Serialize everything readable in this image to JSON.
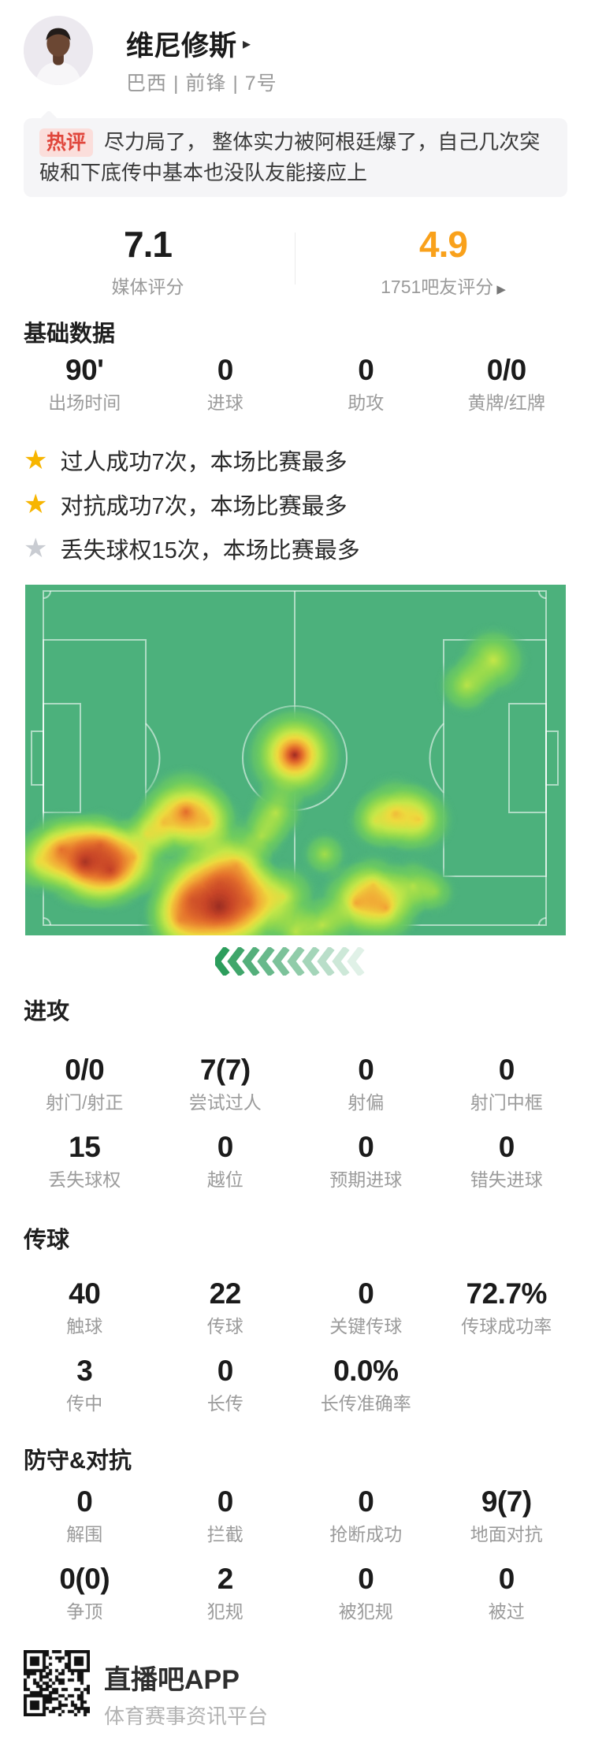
{
  "player": {
    "name": "维尼修斯",
    "caret": "▸",
    "meta": "巴西 | 前锋 | 7号"
  },
  "hot_comment": {
    "badge": "热评",
    "text": "尽力局了， 整体实力被阿根廷爆了，自己几次突破和下底传中基本也没队友能接应上"
  },
  "ratings": {
    "media": {
      "value": "7.1",
      "label": "媒体评分"
    },
    "fans": {
      "value": "4.9",
      "label": "1751吧友评分",
      "caret": "▶",
      "accent": "#f9a11b"
    }
  },
  "basic": {
    "title": "基础数据",
    "stats": [
      {
        "value": "90'",
        "label": "出场时间"
      },
      {
        "value": "0",
        "label": "进球"
      },
      {
        "value": "0",
        "label": "助攻"
      },
      {
        "value": "0/0",
        "label": "黄牌/红牌"
      }
    ]
  },
  "highlights": {
    "star_glyph": "★",
    "items": [
      {
        "star_color": "#f7b500",
        "text": "过人成功7次，本场比赛最多"
      },
      {
        "star_color": "#f7b500",
        "text": "对抗成功7次，本场比赛最多"
      },
      {
        "star_color": "#c9ccd2",
        "text": "丢失球权15次，本场比赛最多"
      }
    ]
  },
  "attack": {
    "title": "进攻",
    "stats": [
      {
        "value": "0/0",
        "label": "射门/射正"
      },
      {
        "value": "7(7)",
        "label": "尝试过人"
      },
      {
        "value": "0",
        "label": "射偏"
      },
      {
        "value": "0",
        "label": "射门中框"
      },
      {
        "value": "15",
        "label": "丢失球权"
      },
      {
        "value": "0",
        "label": "越位"
      },
      {
        "value": "0",
        "label": "预期进球"
      },
      {
        "value": "0",
        "label": "错失进球"
      }
    ]
  },
  "passing": {
    "title": "传球",
    "stats": [
      {
        "value": "40",
        "label": "触球"
      },
      {
        "value": "22",
        "label": "传球"
      },
      {
        "value": "0",
        "label": "关键传球"
      },
      {
        "value": "72.7%",
        "label": "传球成功率"
      },
      {
        "value": "3",
        "label": "传中"
      },
      {
        "value": "0",
        "label": "长传"
      },
      {
        "value": "0.0%",
        "label": "长传准确率"
      },
      {
        "value": "",
        "label": ""
      }
    ]
  },
  "defense": {
    "title": "防守&对抗",
    "stats": [
      {
        "value": "0",
        "label": "解围"
      },
      {
        "value": "0",
        "label": "拦截"
      },
      {
        "value": "0",
        "label": "抢断成功"
      },
      {
        "value": "9(7)",
        "label": "地面对抗"
      },
      {
        "value": "0(0)",
        "label": "争顶"
      },
      {
        "value": "2",
        "label": "犯规"
      },
      {
        "value": "0",
        "label": "被犯规"
      },
      {
        "value": "0",
        "label": "被过"
      }
    ]
  },
  "heatmap": {
    "pitch_color": "#4cb17c",
    "line_color": "rgba(255,255,255,0.55)",
    "direction": "left",
    "points": [
      [
        342,
        216,
        32,
        1.0
      ],
      [
        594,
        96,
        24,
        0.55
      ],
      [
        560,
        128,
        20,
        0.5
      ],
      [
        204,
        288,
        30,
        0.8
      ],
      [
        232,
        302,
        24,
        0.55
      ],
      [
        176,
        302,
        22,
        0.5
      ],
      [
        154,
        316,
        18,
        0.4
      ],
      [
        318,
        289,
        20,
        0.5
      ],
      [
        300,
        319,
        18,
        0.45
      ],
      [
        380,
        342,
        16,
        0.45
      ],
      [
        470,
        290,
        26,
        0.6
      ],
      [
        500,
        298,
        24,
        0.6
      ],
      [
        444,
        300,
        20,
        0.45
      ],
      [
        46,
        336,
        26,
        0.7
      ],
      [
        76,
        352,
        32,
        0.95
      ],
      [
        108,
        362,
        28,
        0.85
      ],
      [
        138,
        346,
        26,
        0.6
      ],
      [
        16,
        352,
        22,
        0.5
      ],
      [
        96,
        330,
        24,
        0.6
      ],
      [
        246,
        408,
        42,
        1.0
      ],
      [
        246,
        378,
        38,
        0.5
      ],
      [
        212,
        400,
        32,
        0.6
      ],
      [
        282,
        404,
        30,
        0.6
      ],
      [
        196,
        426,
        26,
        0.55
      ],
      [
        328,
        396,
        24,
        0.55
      ],
      [
        377,
        432,
        18,
        0.5
      ],
      [
        343,
        441,
        18,
        0.5
      ],
      [
        420,
        404,
        26,
        0.7
      ],
      [
        458,
        410,
        24,
        0.7
      ],
      [
        442,
        380,
        22,
        0.5
      ],
      [
        492,
        382,
        20,
        0.45
      ],
      [
        520,
        390,
        16,
        0.35
      ],
      [
        268,
        356,
        24,
        0.5
      ]
    ]
  },
  "chevrons": {
    "count": 10,
    "rgb": "44,157,92"
  },
  "footer": {
    "app_name": "直播吧APP",
    "tagline": "体育赛事资讯平台"
  }
}
